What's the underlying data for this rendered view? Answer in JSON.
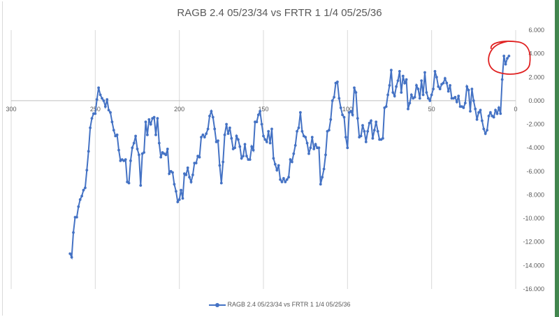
{
  "chart_data": {
    "type": "line",
    "title": "RAGB 2.4 05/23/34 vs FRTR 1 1/4 05/25/36",
    "xlabel": "",
    "ylabel": "",
    "x_reversed": true,
    "xlim": [
      300,
      0
    ],
    "ylim": [
      -16,
      6
    ],
    "x_ticks": [
      300,
      250,
      200,
      150,
      100,
      50,
      0
    ],
    "y_ticks": [
      6,
      4,
      2,
      0,
      -2,
      -4,
      -6,
      -8,
      -10,
      -12,
      -14,
      -16
    ],
    "y_tick_format": "3dp",
    "grid": "vertical",
    "legend_position": "bottom",
    "series": [
      {
        "name": "RAGB 2.4 05/23/34 vs FRTR 1 1/4 05/25/36",
        "color": "#4472c4",
        "points": [
          [
            265,
            -13.0
          ],
          [
            264,
            -13.3
          ],
          [
            263,
            -11.2
          ],
          [
            262,
            -9.9
          ],
          [
            261,
            -9.9
          ],
          [
            260,
            -9.0
          ],
          [
            259,
            -8.4
          ],
          [
            258,
            -8.1
          ],
          [
            257,
            -7.6
          ],
          [
            256,
            -7.4
          ],
          [
            255,
            -5.9
          ],
          [
            254,
            -4.3
          ],
          [
            253,
            -2.3
          ],
          [
            252,
            -1.5
          ],
          [
            251,
            -1.1
          ],
          [
            250,
            -1.1
          ],
          [
            249,
            0.1
          ],
          [
            248,
            1.1
          ],
          [
            247,
            0.5
          ],
          [
            246,
            0.2
          ],
          [
            245,
            0.0
          ],
          [
            244,
            -0.5
          ],
          [
            243,
            0.1
          ],
          [
            242,
            -0.8
          ],
          [
            241,
            -1.0
          ],
          [
            240,
            -1.8
          ],
          [
            239,
            -2.5
          ],
          [
            238,
            -3.0
          ],
          [
            237,
            -2.9
          ],
          [
            236,
            -4.2
          ],
          [
            235,
            -5.1
          ],
          [
            234,
            -5.0
          ],
          [
            233,
            -5.1
          ],
          [
            232,
            -5.0
          ],
          [
            231,
            -6.9
          ],
          [
            230,
            -7.0
          ],
          [
            229,
            -5.1
          ],
          [
            228,
            -4.0
          ],
          [
            227,
            -3.6
          ],
          [
            226,
            -3.0
          ],
          [
            225,
            -4.1
          ],
          [
            224,
            -4.6
          ],
          [
            223,
            -7.2
          ],
          [
            222,
            -4.5
          ],
          [
            221,
            -4.4
          ],
          [
            220,
            -1.8
          ],
          [
            219,
            -2.9
          ],
          [
            218,
            -1.6
          ],
          [
            217,
            -2.0
          ],
          [
            216,
            -1.5
          ],
          [
            215,
            -1.4
          ],
          [
            214,
            -2.9
          ],
          [
            213,
            -1.5
          ],
          [
            212,
            -3.6
          ],
          [
            211,
            -4.8
          ],
          [
            210,
            -4.4
          ],
          [
            209,
            -4.5
          ],
          [
            208,
            -4.6
          ],
          [
            207,
            -4.1
          ],
          [
            206,
            -6.2
          ],
          [
            205,
            -6.0
          ],
          [
            204,
            -6.1
          ],
          [
            203,
            -7.1
          ],
          [
            202,
            -7.7
          ],
          [
            201,
            -8.6
          ],
          [
            200,
            -8.4
          ],
          [
            199,
            -7.6
          ],
          [
            198,
            -8.3
          ],
          [
            197,
            -6.2
          ],
          [
            196,
            -6.3
          ],
          [
            195,
            -5.7
          ],
          [
            194,
            -6.5
          ],
          [
            193,
            -6.9
          ],
          [
            192,
            -6.3
          ],
          [
            191,
            -5.3
          ],
          [
            190,
            -5.3
          ],
          [
            189,
            -4.7
          ],
          [
            188,
            -4.8
          ],
          [
            187,
            -3.1
          ],
          [
            186,
            -2.9
          ],
          [
            185,
            -3.1
          ],
          [
            184,
            -2.8
          ],
          [
            183,
            -2.4
          ],
          [
            182,
            -1.3
          ],
          [
            181,
            -0.9
          ],
          [
            180,
            -1.4
          ],
          [
            179,
            -2.4
          ],
          [
            178,
            -3.5
          ],
          [
            177,
            -3.4
          ],
          [
            176,
            -5.5
          ],
          [
            175,
            -7.0
          ],
          [
            174,
            -5.2
          ],
          [
            173,
            -2.9
          ],
          [
            172,
            -2.0
          ],
          [
            171,
            -2.8
          ],
          [
            170,
            -2.3
          ],
          [
            169,
            -3.2
          ],
          [
            168,
            -4.1
          ],
          [
            167,
            -4.0
          ],
          [
            166,
            -3.0
          ],
          [
            165,
            -3.3
          ],
          [
            164,
            -3.9
          ],
          [
            163,
            -4.9
          ],
          [
            162,
            -4.7
          ],
          [
            161,
            -3.7
          ],
          [
            160,
            -4.7
          ],
          [
            159,
            -5.0
          ],
          [
            158,
            -5.0
          ],
          [
            157,
            -3.9
          ],
          [
            156,
            -4.2
          ],
          [
            155,
            -1.8
          ],
          [
            154,
            -1.8
          ],
          [
            153,
            -1.2
          ],
          [
            152,
            -0.9
          ],
          [
            151,
            -2.0
          ],
          [
            150,
            -3.0
          ],
          [
            149,
            -3.3
          ],
          [
            148,
            -3.5
          ],
          [
            147,
            -2.6
          ],
          [
            146,
            -3.6
          ],
          [
            145,
            -2.4
          ],
          [
            144,
            -4.9
          ],
          [
            143,
            -5.4
          ],
          [
            142,
            -5.9
          ],
          [
            141,
            -5.5
          ],
          [
            140,
            -6.7
          ],
          [
            139,
            -6.9
          ],
          [
            138,
            -6.6
          ],
          [
            137,
            -6.9
          ],
          [
            136,
            -6.7
          ],
          [
            135,
            -6.5
          ],
          [
            134,
            -5.0
          ],
          [
            133,
            -5.2
          ],
          [
            132,
            -4.5
          ],
          [
            131,
            -3.8
          ],
          [
            130,
            -2.6
          ],
          [
            129,
            -2.3
          ],
          [
            128,
            -1.0
          ],
          [
            127,
            -2.6
          ],
          [
            126,
            -3.0
          ],
          [
            125,
            -3.1
          ],
          [
            124,
            -3.6
          ],
          [
            123,
            -4.5
          ],
          [
            122,
            -4.0
          ],
          [
            121,
            -3.1
          ],
          [
            120,
            -4.1
          ],
          [
            119,
            -3.7
          ],
          [
            118,
            -4.0
          ],
          [
            117,
            -4.0
          ],
          [
            116,
            -7.1
          ],
          [
            115,
            -6.5
          ],
          [
            114,
            -5.8
          ],
          [
            113,
            -4.6
          ],
          [
            112,
            -2.6
          ],
          [
            111,
            -2.5
          ],
          [
            110,
            -1.6
          ],
          [
            109,
            0.0
          ],
          [
            108,
            0.3
          ],
          [
            107,
            1.5
          ],
          [
            106,
            1.6
          ],
          [
            105,
            0.2
          ],
          [
            104,
            -0.6
          ],
          [
            103,
            -1.2
          ],
          [
            102,
            -1.4
          ],
          [
            101,
            -3.1
          ],
          [
            100,
            -4.0
          ],
          [
            99,
            -1.0
          ],
          [
            98,
            -0.9
          ],
          [
            97,
            -1.2
          ],
          [
            96,
            1.1
          ],
          [
            95,
            0.7
          ],
          [
            94,
            -1.5
          ],
          [
            93,
            -3.1
          ],
          [
            92,
            -3.0
          ],
          [
            91,
            -2.1
          ],
          [
            90,
            -2.6
          ],
          [
            89,
            -3.5
          ],
          [
            88,
            -2.6
          ],
          [
            87,
            -1.9
          ],
          [
            86,
            -1.7
          ],
          [
            85,
            -3.2
          ],
          [
            84,
            -2.5
          ],
          [
            83,
            -1.8
          ],
          [
            82,
            -2.6
          ],
          [
            81,
            -3.3
          ],
          [
            80,
            -3.3
          ],
          [
            79,
            -3.2
          ],
          [
            78,
            -0.6
          ],
          [
            77,
            -0.5
          ],
          [
            76,
            0.5
          ],
          [
            75,
            1.3
          ],
          [
            74,
            2.6
          ],
          [
            73,
            0.7
          ],
          [
            72,
            0.4
          ],
          [
            71,
            1.2
          ],
          [
            70,
            1.7
          ],
          [
            69,
            2.5
          ],
          [
            68,
            0.7
          ],
          [
            67,
            2.1
          ],
          [
            66,
            1.5
          ],
          [
            65,
            1.8
          ],
          [
            64,
            -0.7
          ],
          [
            63,
            -0.2
          ],
          [
            62,
            0.5
          ],
          [
            61,
            0.2
          ],
          [
            60,
            0.3
          ],
          [
            59,
            1.3
          ],
          [
            58,
            1.0
          ],
          [
            57,
            0.2
          ],
          [
            56,
            1.7
          ],
          [
            55,
            0.5
          ],
          [
            54,
            2.4
          ],
          [
            53,
            0.7
          ],
          [
            52,
            0.2
          ],
          [
            51,
            0.0
          ],
          [
            50,
            0.5
          ],
          [
            49,
            1.0
          ],
          [
            48,
            2.5
          ],
          [
            47,
            2.0
          ],
          [
            46,
            1.2
          ],
          [
            45,
            1.0
          ],
          [
            44,
            1.4
          ],
          [
            43,
            1.5
          ],
          [
            42,
            1.9
          ],
          [
            41,
            1.5
          ],
          [
            40,
            0.8
          ],
          [
            39,
            1.3
          ],
          [
            38,
            0.2
          ],
          [
            37,
            0.2
          ],
          [
            36,
            0.3
          ],
          [
            35,
            -0.1
          ],
          [
            34,
            0.4
          ],
          [
            33,
            -0.5
          ],
          [
            32,
            -0.5
          ],
          [
            31,
            -0.6
          ],
          [
            30,
            -0.2
          ],
          [
            29,
            1.2
          ],
          [
            28,
            0.9
          ],
          [
            27,
            -0.9
          ],
          [
            26,
            1.0
          ],
          [
            25,
            0.0
          ],
          [
            24,
            -0.7
          ],
          [
            23,
            -1.6
          ],
          [
            22,
            -1.0
          ],
          [
            21,
            -0.8
          ],
          [
            20,
            -1.7
          ],
          [
            19,
            -2.4
          ],
          [
            18,
            -2.8
          ],
          [
            17,
            -2.5
          ],
          [
            16,
            -1.3
          ],
          [
            15,
            -1.0
          ],
          [
            14,
            -1.3
          ],
          [
            13,
            -1.4
          ],
          [
            12,
            -0.8
          ],
          [
            11,
            -1.1
          ],
          [
            10,
            -0.6
          ],
          [
            9,
            -1.1
          ],
          [
            8,
            1.8
          ],
          [
            7,
            3.8
          ],
          [
            6,
            3.1
          ],
          [
            5,
            3.6
          ],
          [
            4,
            3.8
          ]
        ]
      }
    ]
  },
  "annotation": {
    "type": "freehand-circle",
    "color": "#e02020"
  }
}
